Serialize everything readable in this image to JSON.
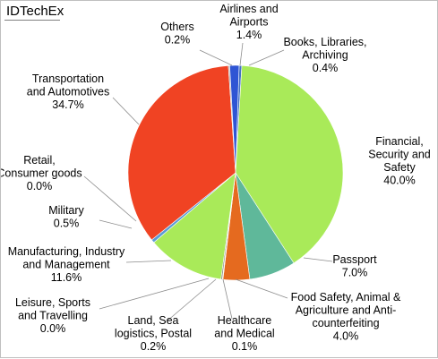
{
  "brand": "IDTechEx",
  "chart_data": {
    "type": "pie",
    "title": "",
    "start": "top, clockwise",
    "slices": [
      {
        "name": "Books, Libraries, Archiving",
        "value": 0.4,
        "label": [
          "Books, Libraries,",
          "Archiving",
          "0.4%"
        ],
        "color": "#4472C4"
      },
      {
        "name": "Financial, Security and Safety",
        "value": 40.0,
        "label": [
          "Financial,",
          "Security and",
          "Safety",
          "40.0%"
        ],
        "color": "#A9EA59"
      },
      {
        "name": "Passport",
        "value": 7.0,
        "label": [
          "Passport",
          "7.0%"
        ],
        "color": "#5FB89A"
      },
      {
        "name": "Food Safety, Animal & Agriculture and Anti-counterfeiting",
        "value": 4.0,
        "label": [
          "Food Safety, Animal &",
          "Agriculture and Anti-",
          "counterfeiting",
          "4.0%"
        ],
        "color": "#E56A1F"
      },
      {
        "name": "Healthcare and Medical",
        "value": 0.1,
        "label": [
          "Healthcare",
          "and Medical",
          "0.1%"
        ],
        "color": "#C7A437"
      },
      {
        "name": "Land, Sea logistics, Postal",
        "value": 0.2,
        "label": [
          "Land, Sea",
          "logistics, Postal",
          "0.2%"
        ],
        "color": "#7F7F7F"
      },
      {
        "name": "Leisure, Sports and Travelling",
        "value": 0.0,
        "label": [
          "Leisure, Sports",
          "and Travelling",
          "0.0%"
        ],
        "color": "#9DC3E6"
      },
      {
        "name": "Manufacturing, Industry and Management",
        "value": 11.6,
        "label": [
          "Manufacturing, Industry",
          "and Management",
          "11.6%"
        ],
        "color": "#A9EA59"
      },
      {
        "name": "Military",
        "value": 0.5,
        "label": [
          "Military",
          "0.5%"
        ],
        "color": "#5B9BD5"
      },
      {
        "name": "Retail, Consumer goods",
        "value": 0.0,
        "label": [
          "Retail,",
          "Consumer goods",
          "0.0%"
        ],
        "color": "#ED7D31"
      },
      {
        "name": "Transportation and Automotives",
        "value": 34.7,
        "label": [
          "Transportation",
          "and Automotives",
          "34.7%"
        ],
        "color": "#F04323"
      },
      {
        "name": "Others",
        "value": 0.2,
        "label": [
          "Others",
          "0.2%"
        ],
        "color": "#A5A5A5"
      },
      {
        "name": "Airlines and Airports",
        "value": 1.4,
        "label": [
          "Airlines and",
          "Airports",
          "1.4%"
        ],
        "color": "#2F55D4"
      }
    ]
  }
}
